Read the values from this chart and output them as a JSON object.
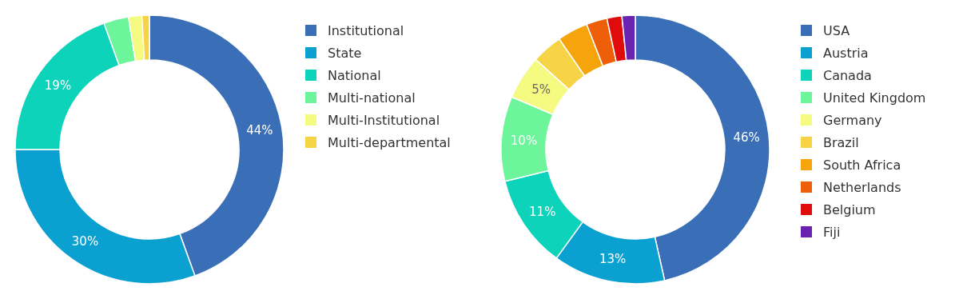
{
  "chart_data": [
    {
      "type": "donut",
      "categories": [
        "Institutional",
        "State",
        "National",
        "Multi-national",
        "Multi-Institutional",
        "Multi-departmental"
      ],
      "values": [
        44.5,
        30.5,
        19.5,
        3,
        1.6,
        0.9
      ],
      "value_labels": [
        "44%",
        "30%",
        "19%",
        null,
        null,
        null
      ],
      "colors": [
        "#3a6fb7",
        "#0aa0cf",
        "#0dd3bb",
        "#6cf59a",
        "#f5fa80",
        "#f7d445"
      ],
      "legend": "right"
    },
    {
      "type": "donut",
      "categories": [
        "USA",
        "Austria",
        "Canada",
        "United Kingdom",
        "Germany",
        "Brazil",
        "South Africa",
        "Netherlands",
        "Belgium",
        "Fiji"
      ],
      "values": [
        46.5,
        13.5,
        11.2,
        10.2,
        5.3,
        3.7,
        3.7,
        2.5,
        1.8,
        1.6
      ],
      "value_labels": [
        "46%",
        "13%",
        "11%",
        "10%",
        "5%",
        null,
        null,
        null,
        null,
        null
      ],
      "colors": [
        "#3a6fb7",
        "#0aa0cf",
        "#0dd3bb",
        "#6cf59a",
        "#f5fa80",
        "#f7d445",
        "#f6a40c",
        "#ee5f0a",
        "#e00c0c",
        "#6a22b0"
      ],
      "legend": "right"
    }
  ]
}
